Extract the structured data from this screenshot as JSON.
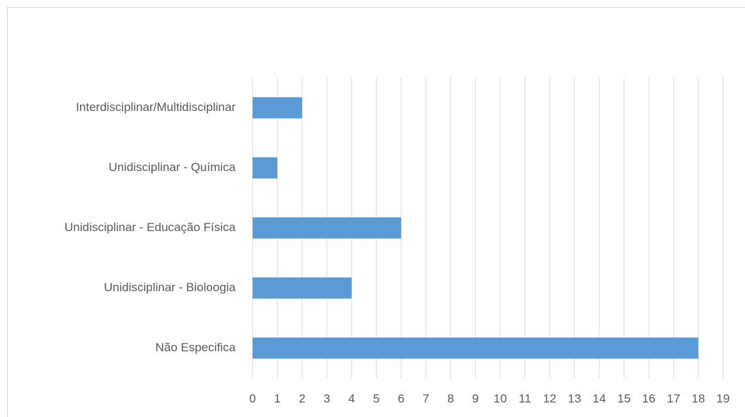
{
  "chart_data": {
    "type": "barh",
    "categories": [
      "Interdisciplinar/Multidisciplinar",
      "Unidisciplinar - Química",
      "Unidisciplinar - Educação Física",
      "Unidisciplinar - Bioloogia",
      "Não Especifica"
    ],
    "values": [
      2,
      1,
      6,
      4,
      18
    ],
    "color": "#5b9bd5",
    "xlim": [
      0,
      19
    ],
    "xticks": [
      0,
      1,
      2,
      3,
      4,
      5,
      6,
      7,
      8,
      9,
      10,
      11,
      12,
      13,
      14,
      15,
      16,
      17,
      18,
      19
    ],
    "grid": true
  }
}
